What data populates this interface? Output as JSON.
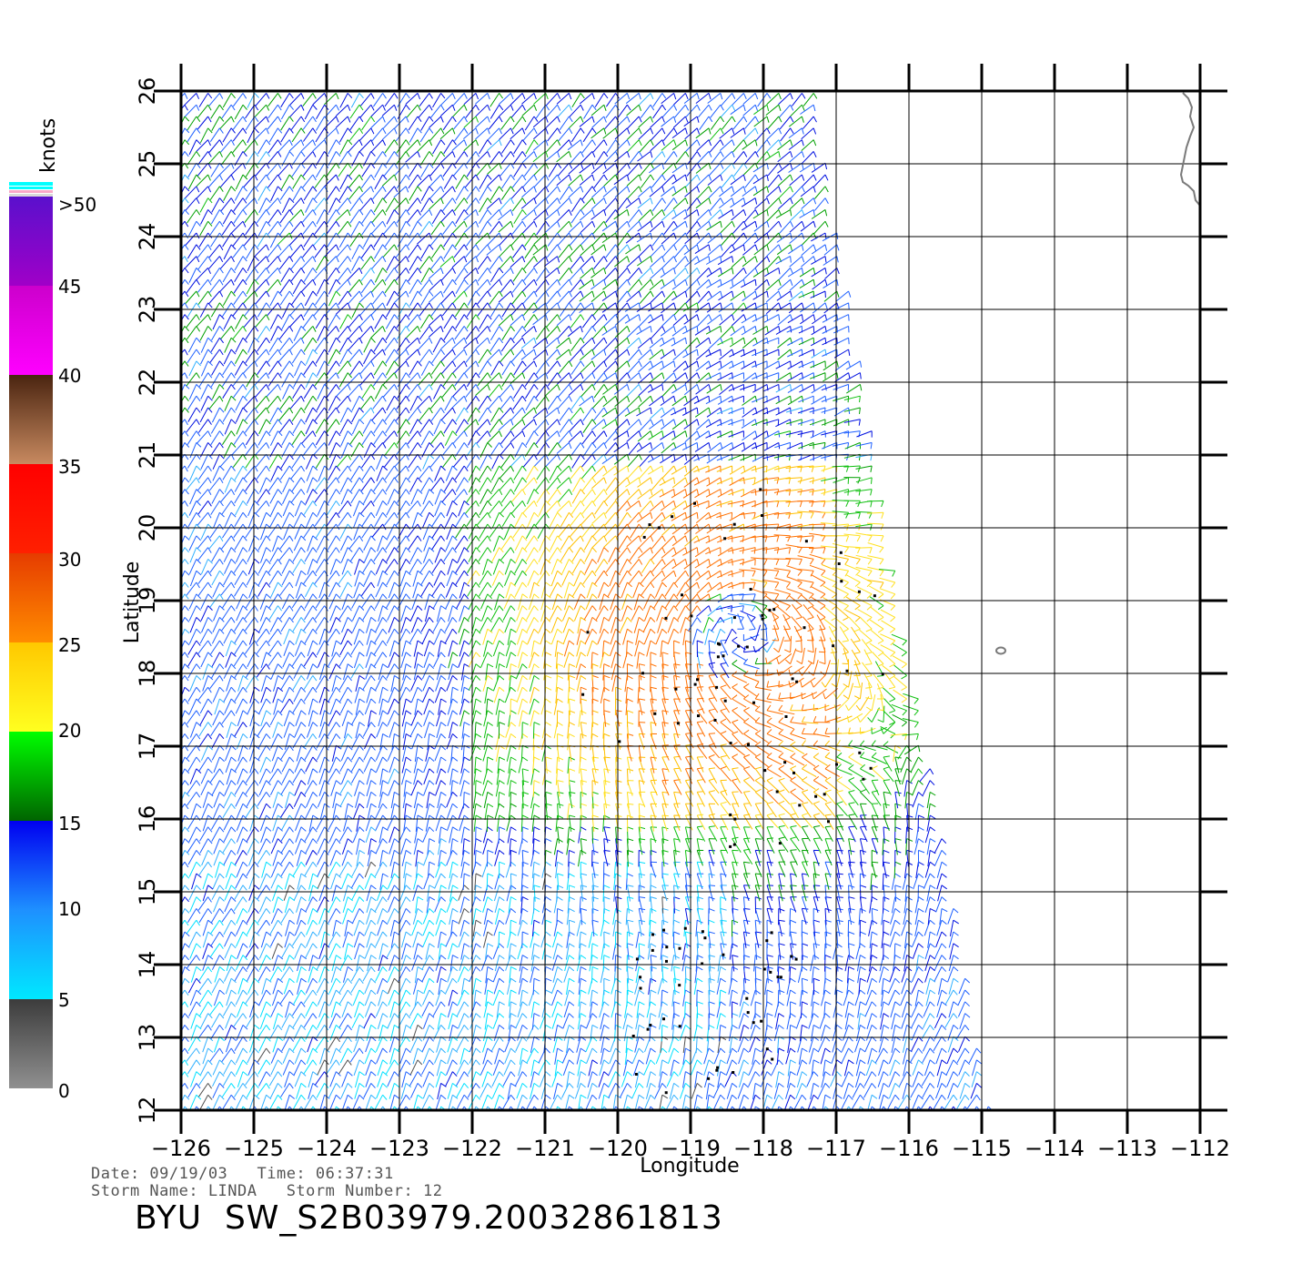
{
  "map": {
    "x_axis": {
      "label": "Longitude",
      "range": [
        -126,
        -112
      ],
      "ticks": [
        "−126",
        "−125",
        "−124",
        "−123",
        "−122",
        "−121",
        "−120",
        "−119",
        "−118",
        "−117",
        "−116",
        "−115",
        "−114",
        "−113",
        "−112"
      ]
    },
    "y_axis": {
      "label": "Latitude",
      "range": [
        12,
        26
      ],
      "ticks": [
        "12",
        "13",
        "14",
        "15",
        "16",
        "17",
        "18",
        "19",
        "20",
        "21",
        "22",
        "23",
        "24",
        "25",
        "26"
      ]
    },
    "grid": true,
    "wind_field": "scatterometer wind barbs colored by speed; swath edge from about -117.3 at 26N to -114.9 at 12N",
    "storm_center": {
      "lon": -118.4,
      "lat": 18.6
    },
    "land_color": "#777777"
  },
  "colorbar": {
    "unit_label": "knots",
    "labels": [
      ">50",
      "45",
      "40",
      "35",
      "30",
      "25",
      "20",
      "15",
      "10",
      "5",
      "0"
    ],
    "segments": [
      {
        "from": 0,
        "to": 5,
        "top": "#3c3c3c",
        "bottom": "#909090"
      },
      {
        "from": 5,
        "to": 10,
        "top": "#1e90ff",
        "bottom": "#00e8ff"
      },
      {
        "from": 10,
        "to": 15,
        "top": "#0000f0",
        "bottom": "#1e90ff"
      },
      {
        "from": 15,
        "to": 20,
        "top": "#00ff00",
        "bottom": "#006400"
      },
      {
        "from": 20,
        "to": 25,
        "top": "#ffc800",
        "bottom": "#ffff20"
      },
      {
        "from": 25,
        "to": 30,
        "top": "#e63c00",
        "bottom": "#ff8c00"
      },
      {
        "from": 30,
        "to": 35,
        "top": "#ff0000",
        "bottom": "#ff2000"
      },
      {
        "from": 35,
        "to": 40,
        "top": "#4a2410",
        "bottom": "#c88a60"
      },
      {
        "from": 40,
        "to": 45,
        "top": "#cc00cc",
        "bottom": "#ff00ff"
      },
      {
        "from": 45,
        "to": 50,
        "top": "#5a10cc",
        "bottom": "#a000c8"
      }
    ],
    "cap_colors": [
      "#00ffff",
      "#f8a8c8"
    ]
  },
  "meta": {
    "line1": "Date: 09/19/03   Time: 06:37:31",
    "line2": "Storm Name: LINDA   Storm Number: 12"
  },
  "title": "BYU  SW_S2B03979.20032861813"
}
